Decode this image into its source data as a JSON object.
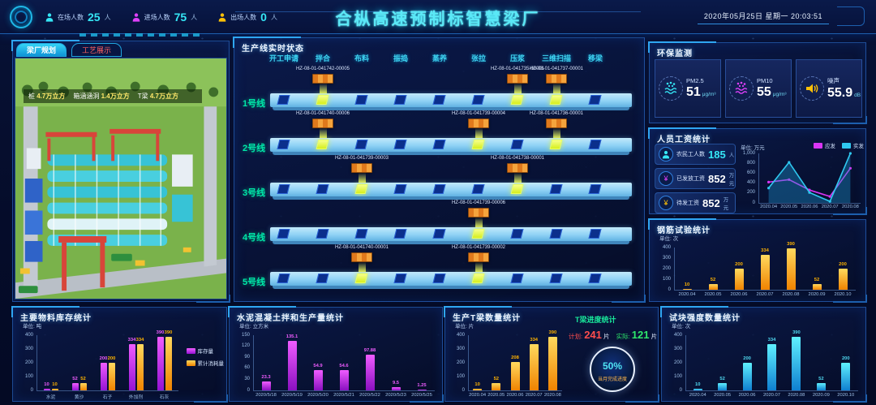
{
  "header": {
    "title": "合枞高速预制标智慧梁厂",
    "datetime": "2020年05月25日 星期一 20:03:51",
    "stats": [
      {
        "label": "在场人数",
        "value": "25",
        "unit": "人",
        "color": "#35e6f5",
        "icon": "person-icon"
      },
      {
        "label": "进场人数",
        "value": "75",
        "unit": "人",
        "color": "#e040fb",
        "icon": "person-icon"
      },
      {
        "label": "出场人数",
        "value": "0",
        "unit": "人",
        "color": "#ffc107",
        "icon": "person-icon"
      }
    ]
  },
  "left_panel": {
    "tabs": [
      {
        "label": "梁厂规划",
        "active": true
      },
      {
        "label": "工艺展示",
        "active": false
      }
    ],
    "overlay_stats": [
      {
        "label": "桩",
        "value": "4.7万立方"
      },
      {
        "label": "箱涵涵洞",
        "value": "1.4万立方"
      },
      {
        "label": "T梁",
        "value": "4.7万立方"
      }
    ]
  },
  "production": {
    "title": "生产线实时状态",
    "stages": [
      "开工申请",
      "拌合",
      "布料",
      "振捣",
      "蒸养",
      "张拉",
      "压浆",
      "三维扫描",
      "移梁"
    ],
    "lines": [
      {
        "name": "1号线",
        "active": [
          {
            "stage": 2,
            "id": "HZ-08-01-041742-00005"
          },
          {
            "stage": 7,
            "id": "HZ-08-01-041735-00001"
          },
          {
            "stage": 8,
            "id": "HZ-08-01-041737-00001"
          }
        ]
      },
      {
        "name": "2号线",
        "active": [
          {
            "stage": 2,
            "id": "HZ-08-01-041740-00006"
          },
          {
            "stage": 6,
            "id": "HZ-08-01-041739-00004"
          },
          {
            "stage": 8,
            "id": "HZ-08-01-041736-00001"
          }
        ]
      },
      {
        "name": "3号线",
        "active": [
          {
            "stage": 3,
            "id": "HZ-08-01-041739-00003"
          },
          {
            "stage": 7,
            "id": "HZ-08-01-041738-00001"
          }
        ]
      },
      {
        "name": "4号线",
        "active": [
          {
            "stage": 6,
            "id": "HZ-08-01-041739-00006"
          }
        ]
      },
      {
        "name": "5号线",
        "active": [
          {
            "stage": 3,
            "id": "HZ-08-01-041740-00001"
          },
          {
            "stage": 6,
            "id": "HZ-08-01-041739-00002"
          }
        ]
      }
    ]
  },
  "right_panels": {
    "environment": {
      "title": "环保监测",
      "items": [
        {
          "label": "PM2.5",
          "value": "51",
          "unit": "μg/m³",
          "icon": "dust-icon",
          "color": "#35e6f5"
        },
        {
          "label": "PM10",
          "value": "55",
          "unit": "μg/m³",
          "icon": "dust-icon",
          "color": "#e040fb"
        },
        {
          "label": "噪声",
          "value": "55.9",
          "unit": "dB",
          "icon": "speaker-icon",
          "color": "#ffc107"
        }
      ]
    },
    "wages": {
      "title": "人员工资统计",
      "unit_label": "单位: 万元",
      "cards": [
        {
          "label": "农民工人数",
          "value": "185",
          "unit": "人",
          "icon": "worker-icon"
        },
        {
          "label": "已发放工资",
          "value": "852",
          "unit": "万元",
          "icon": "money-icon"
        },
        {
          "label": "待发工资",
          "value": "852",
          "unit": "万元",
          "icon": "coin-icon"
        }
      ]
    },
    "rebar": {
      "title": "钢筋试验统计",
      "unit_label": "单位: 次"
    }
  },
  "bottom_panels": {
    "materials": {
      "title": "主要物料库存统计",
      "unit_label": "单位: 吨"
    },
    "concrete": {
      "title": "水泥混凝土拌和生产量统计",
      "unit_label": "单位: 立方米"
    },
    "tbeam": {
      "title": "生产T梁数量统计",
      "unit_label": "单位: 片",
      "progress": {
        "title": "T梁进度统计",
        "plan_label": "计划:",
        "plan_value": "241",
        "plan_unit": "片",
        "actual_label": "实际:",
        "actual_value": "121",
        "actual_unit": "片",
        "gauge_value": "50%",
        "gauge_label": "当月完成进度"
      }
    },
    "testblock": {
      "title": "试块强度数量统计",
      "unit_label": "单位: 次"
    }
  },
  "chart_data": [
    {
      "name": "wages-trend",
      "type": "line",
      "x": [
        "2020.04",
        "2020.05",
        "2020.06",
        "2020.07",
        "2020.08"
      ],
      "series": [
        {
          "name": "应发",
          "color": "#d935f5",
          "values": [
            420,
            470,
            260,
            130,
            700
          ]
        },
        {
          "name": "实发",
          "color": "#2fc8f0",
          "values": [
            300,
            820,
            210,
            30,
            1000
          ],
          "area": true
        }
      ],
      "ylim": [
        0,
        1000
      ],
      "yticks": [
        "0",
        "200",
        "400",
        "600",
        "800",
        "1,000"
      ],
      "ylabel": "单位: 万元",
      "legend_position": "top-right",
      "grid": false
    },
    {
      "name": "rebar-tests",
      "type": "bar",
      "categories": [
        "2020.04",
        "2020.05",
        "2020.06",
        "2020.07",
        "2020.08",
        "2020.09",
        "2020.10"
      ],
      "values": [
        10,
        52,
        200,
        334,
        390,
        52,
        200
      ],
      "ylim": [
        0,
        400
      ],
      "yticks": [
        "0",
        "100",
        "200",
        "300",
        "400"
      ],
      "ylabel": "单位: 次",
      "colors": [
        "#ffd95e",
        "#f08300"
      ],
      "label_color": "#ffb300"
    },
    {
      "name": "materials-stock",
      "type": "bar",
      "categories": [
        "水泥",
        "黄沙",
        "石子",
        "外加剂",
        "石灰"
      ],
      "series": [
        {
          "name": "库存量",
          "colors": [
            "#f05cff",
            "#9412d4"
          ],
          "label_color": "#f05cff",
          "values": [
            10,
            52,
            200,
            334,
            390
          ]
        },
        {
          "name": "累计消耗量",
          "colors": [
            "#ffd95e",
            "#f08300"
          ],
          "label_color": "#ffb300",
          "values": [
            10,
            52,
            200,
            334,
            390
          ]
        }
      ],
      "ylim": [
        0,
        400
      ],
      "yticks": [
        "0",
        "100",
        "200",
        "300",
        "400"
      ],
      "ylabel": "单位: 吨",
      "legend_position": "right"
    },
    {
      "name": "concrete-output",
      "type": "bar",
      "categories": [
        "2020/5/18",
        "2020/5/19",
        "2020/5/20",
        "2020/5/21",
        "2020/5/22",
        "2020/5/23",
        "2020/5/25"
      ],
      "values": [
        23.3,
        135.1,
        54.9,
        54.6,
        97.88,
        9.5,
        1.25
      ],
      "ylim": [
        0,
        150
      ],
      "yticks": [
        "0",
        "30",
        "60",
        "90",
        "120",
        "150"
      ],
      "ylabel": "单位: 立方米",
      "colors": [
        "#f05cff",
        "#8a10c0"
      ],
      "label_color": "#f05cff"
    },
    {
      "name": "tbeam-output",
      "type": "bar",
      "categories": [
        "2020.04",
        "2020.05",
        "2020.06",
        "2020.07",
        "2020.08"
      ],
      "values": [
        10,
        52,
        208,
        334,
        390
      ],
      "ylim": [
        0,
        400
      ],
      "yticks": [
        "0",
        "100",
        "200",
        "300",
        "400"
      ],
      "ylabel": "单位: 片",
      "colors": [
        "#ffd95e",
        "#f08300"
      ],
      "label_color": "#ffb300"
    },
    {
      "name": "testblock-strength",
      "type": "bar",
      "categories": [
        "2020.04",
        "2020.05",
        "2020.06",
        "2020.07",
        "2020.08",
        "2020.09",
        "2020.10"
      ],
      "values": [
        10,
        52,
        200,
        334,
        390,
        52,
        200
      ],
      "ylim": [
        0,
        400
      ],
      "yticks": [
        "0",
        "100",
        "200",
        "300",
        "400"
      ],
      "ylabel": "单位: 次",
      "colors": [
        "#5ff0ff",
        "#0f7fd0"
      ],
      "label_color": "#4fd8f0"
    }
  ]
}
